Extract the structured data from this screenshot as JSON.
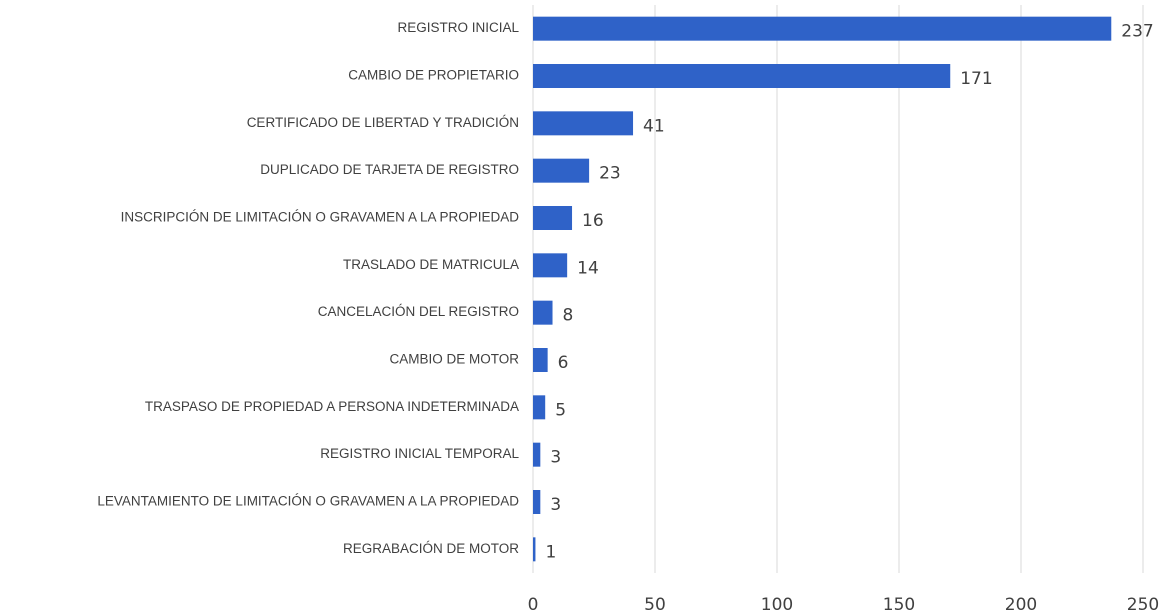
{
  "chart_data": {
    "type": "barh",
    "categories": [
      "REGISTRO INICIAL",
      "CAMBIO DE PROPIETARIO",
      "CERTIFICADO DE LIBERTAD Y TRADICIÓN",
      "DUPLICADO DE TARJETA DE REGISTRO",
      "INSCRIPCIÓN DE LIMITACIÓN O GRAVAMEN A LA PROPIEDAD",
      "TRASLADO DE MATRICULA",
      "CANCELACIÓN DEL REGISTRO",
      "CAMBIO DE MOTOR",
      "TRASPASO DE PROPIEDAD A PERSONA INDETERMINADA",
      "REGISTRO INICIAL TEMPORAL",
      "LEVANTAMIENTO DE LIMITACIÓN O GRAVAMEN A LA PROPIEDAD",
      "REGRABACIÓN DE MOTOR"
    ],
    "values": [
      237,
      171,
      41,
      23,
      16,
      14,
      8,
      6,
      5,
      3,
      3,
      1
    ],
    "color": "#2f62c8",
    "xlim": [
      0,
      250
    ],
    "xticks": [
      0,
      50,
      100,
      150,
      200,
      250
    ],
    "grid": true
  }
}
